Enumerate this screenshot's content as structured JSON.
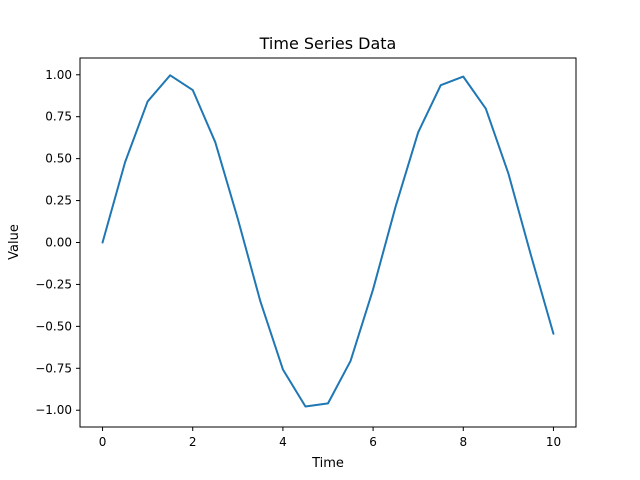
{
  "chart_data": {
    "type": "line",
    "title": "Time Series Data",
    "xlabel": "Time",
    "ylabel": "Value",
    "xlim": [
      -0.5,
      10.5
    ],
    "ylim": [
      -1.1,
      1.1
    ],
    "xticks": [
      0,
      2,
      4,
      6,
      8,
      10
    ],
    "xtick_labels": [
      "0",
      "2",
      "4",
      "6",
      "8",
      "10"
    ],
    "yticks": [
      -1.0,
      -0.75,
      -0.5,
      -0.25,
      0.0,
      0.25,
      0.5,
      0.75,
      1.0
    ],
    "ytick_labels": [
      "−1.00",
      "−0.75",
      "−0.50",
      "−0.25",
      "0.00",
      "0.25",
      "0.50",
      "0.75",
      "1.00"
    ],
    "grid": false,
    "series": [
      {
        "color": "#1f77b4",
        "x": [
          0.0,
          0.5,
          1.0,
          1.5,
          2.0,
          2.5,
          3.0,
          3.5,
          4.0,
          4.5,
          5.0,
          5.5,
          6.0,
          6.5,
          7.0,
          7.5,
          8.0,
          8.5,
          9.0,
          9.5,
          10.0
        ],
        "y": [
          0.0,
          0.479,
          0.841,
          0.997,
          0.909,
          0.598,
          0.141,
          -0.351,
          -0.757,
          -0.978,
          -0.959,
          -0.706,
          -0.279,
          0.215,
          0.657,
          0.938,
          0.989,
          0.798,
          0.412,
          -0.075,
          -0.544
        ]
      }
    ]
  }
}
